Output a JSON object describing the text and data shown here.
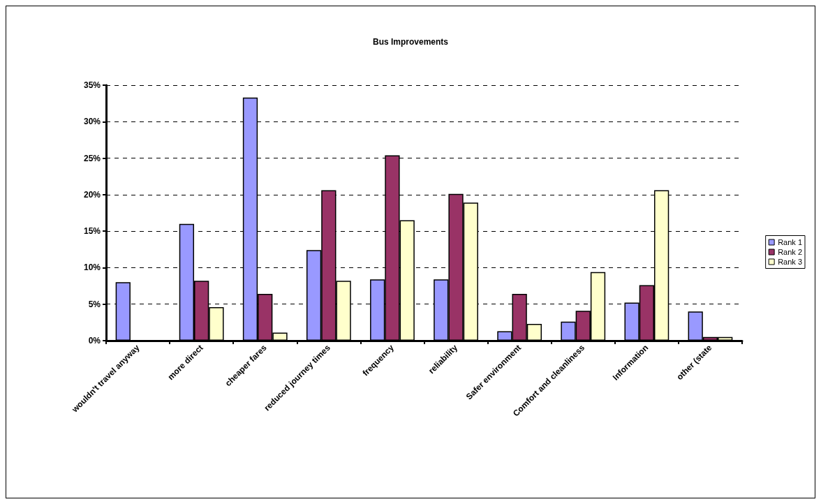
{
  "chart_data": {
    "type": "bar",
    "title": "Bus Improvements",
    "categories": [
      "wouldn't travel anyway",
      "more direct",
      "cheaper fares",
      "reduced journey times",
      "frequency",
      "reliability",
      "Safer environment",
      "Comfort and cleanliness",
      "Information",
      "other (state"
    ],
    "series": [
      {
        "name": "Rank 1",
        "color": "#9999ff",
        "values": [
          8.0,
          16.0,
          33.3,
          12.4,
          8.4,
          8.4,
          1.3,
          2.6,
          5.2,
          4.0
        ]
      },
      {
        "name": "Rank 2",
        "color": "#993366",
        "values": [
          null,
          8.2,
          6.4,
          20.6,
          25.4,
          20.1,
          6.4,
          4.1,
          7.6,
          0.5
        ]
      },
      {
        "name": "Rank 3",
        "color": "#ffffcc",
        "values": [
          null,
          4.6,
          1.1,
          8.2,
          16.5,
          18.9,
          2.3,
          9.4,
          20.6,
          0.5
        ]
      }
    ],
    "ylim": [
      0,
      35
    ],
    "yticks": [
      {
        "value": 0,
        "label": "0%"
      },
      {
        "value": 5,
        "label": "5%"
      },
      {
        "value": 10,
        "label": "10%"
      },
      {
        "value": 15,
        "label": "15%"
      },
      {
        "value": 20,
        "label": "20%"
      },
      {
        "value": 25,
        "label": "25%"
      },
      {
        "value": 30,
        "label": "30%"
      },
      {
        "value": 35,
        "label": "35%"
      }
    ],
    "grid": "y",
    "legend": "right"
  }
}
